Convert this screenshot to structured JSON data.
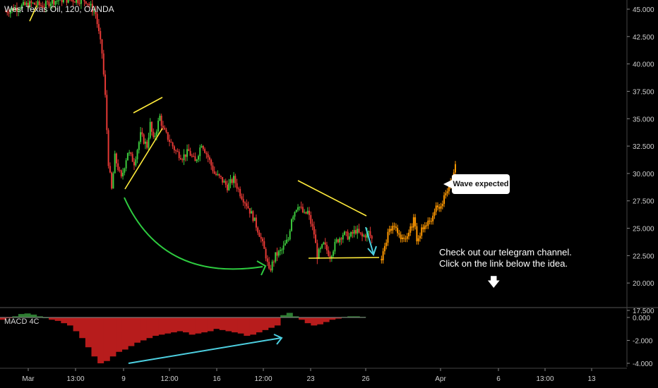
{
  "header": {
    "title": "West Texas Oil, 120, OANDA"
  },
  "macd": {
    "title": "MACD 4C"
  },
  "annotations": {
    "callout": "Wave expected",
    "note_line1": "Check out our telegram channel.",
    "note_line2": "Click on the link below the idea."
  },
  "colors": {
    "background": "#000000",
    "up": "#26a69a",
    "up_bright": "#3cc83c",
    "down": "#e53935",
    "projection": "#ff9800",
    "yellow_lines": "#ffeb3b",
    "green_arc": "#2ecc40",
    "cyan_arrow": "#4dd0e1",
    "macd_neg": "#b71c1c",
    "macd_pos": "#2e7d32",
    "axis_text": "#cfcfcf"
  },
  "chart_data": [
    {
      "type": "candlestick",
      "title": "West Texas Oil, 120, OANDA",
      "y_ticks": [
        "45.000",
        "42.500",
        "40.000",
        "37.500",
        "35.000",
        "32.500",
        "30.000",
        "27.500",
        "25.000",
        "22.500",
        "20.000",
        "17.500"
      ],
      "x_ticks": [
        "Mar",
        "13:00",
        "9",
        "12:00",
        "16",
        "12:00",
        "23",
        "26",
        "Apr",
        "6",
        "13:00",
        "13"
      ],
      "ylim": [
        15.8,
        46.0
      ],
      "close_path": [
        [
          0,
          44.8
        ],
        [
          4,
          45.2
        ],
        [
          8,
          45.5
        ],
        [
          12,
          45.3
        ],
        [
          14,
          45.7
        ],
        [
          18,
          45.9
        ],
        [
          25,
          45.8
        ],
        [
          28,
          44.6
        ],
        [
          30,
          41.0
        ],
        [
          31,
          37.0
        ],
        [
          32,
          31.0
        ],
        [
          33,
          28.5
        ],
        [
          34,
          31.5
        ],
        [
          36,
          29.5
        ],
        [
          38,
          32.0
        ],
        [
          40,
          31.0
        ],
        [
          42,
          33.5
        ],
        [
          44,
          32.5
        ],
        [
          45,
          34.5
        ],
        [
          46,
          33.0
        ],
        [
          48,
          35.2
        ],
        [
          49,
          34.0
        ],
        [
          51,
          33.0
        ],
        [
          53,
          32.0
        ],
        [
          55,
          31.5
        ],
        [
          57,
          32.0
        ],
        [
          59,
          31.0
        ],
        [
          61,
          32.8
        ],
        [
          63,
          31.5
        ],
        [
          65,
          30.0
        ],
        [
          67,
          29.5
        ],
        [
          69,
          28.8
        ],
        [
          71,
          29.5
        ],
        [
          73,
          28.2
        ],
        [
          75,
          27.2
        ],
        [
          77,
          26.0
        ],
        [
          79,
          24.5
        ],
        [
          81,
          22.5
        ],
        [
          82,
          21.0
        ],
        [
          84,
          22.5
        ],
        [
          86,
          23.0
        ],
        [
          88,
          24.0
        ],
        [
          89,
          26.0
        ],
        [
          91,
          27.2
        ],
        [
          93,
          26.2
        ],
        [
          94,
          26.5
        ],
        [
          96,
          24.5
        ],
        [
          97,
          22.5
        ],
        [
          99,
          23.5
        ],
        [
          101,
          22.5
        ],
        [
          103,
          23.8
        ],
        [
          105,
          24.5
        ],
        [
          107,
          24.2
        ],
        [
          109,
          24.8
        ],
        [
          111,
          24.2
        ],
        [
          113,
          24.6
        ],
        [
          114,
          24.0
        ]
      ],
      "projection_path": [
        [
          117,
          22.2
        ],
        [
          119,
          24.5
        ],
        [
          121,
          25.2
        ],
        [
          123,
          24.2
        ],
        [
          125,
          24.0
        ],
        [
          127,
          25.8
        ],
        [
          128,
          24.0
        ],
        [
          130,
          25.2
        ],
        [
          132,
          25.5
        ],
        [
          134,
          27.0
        ],
        [
          135,
          26.8
        ],
        [
          137,
          28.2
        ],
        [
          139,
          29.5
        ],
        [
          140,
          31.0
        ]
      ],
      "xlim": [
        0,
        200
      ]
    },
    {
      "type": "histogram",
      "title": "MACD 4C",
      "y_ticks": [
        "0.000",
        "-2.000",
        "-4.000"
      ],
      "ylim": [
        -4.2,
        0.4
      ],
      "values": [
        -0.2,
        -0.05,
        0.1,
        0.3,
        0.35,
        0.25,
        0.1,
        0.0,
        -0.2,
        -0.3,
        -0.5,
        -0.7,
        -1.2,
        -1.8,
        -2.6,
        -3.4,
        -4.0,
        -3.8,
        -3.4,
        -3.0,
        -2.8,
        -2.5,
        -2.2,
        -2.0,
        -1.8,
        -1.6,
        -1.5,
        -1.4,
        -1.3,
        -1.2,
        -1.3,
        -1.5,
        -1.4,
        -1.3,
        -1.2,
        -1.0,
        -1.1,
        -1.2,
        -1.3,
        -1.4,
        -1.6,
        -1.5,
        -1.3,
        -1.1,
        -0.9,
        -0.7,
        0.2,
        0.4,
        0.1,
        -0.2,
        -0.5,
        -0.7,
        -0.6,
        -0.4,
        -0.2,
        -0.1,
        0.05,
        0.1,
        0.1,
        0.05
      ]
    }
  ]
}
